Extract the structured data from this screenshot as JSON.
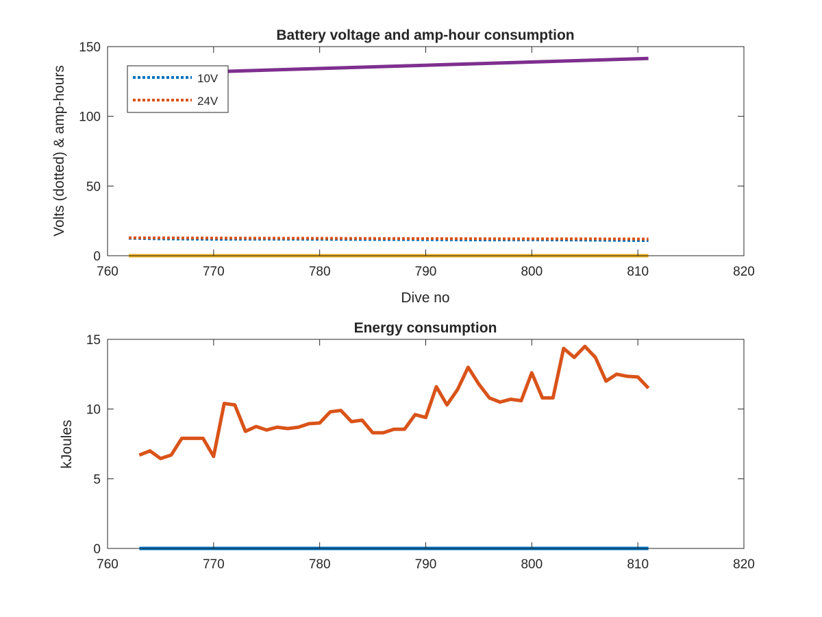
{
  "chart_data": [
    {
      "type": "line",
      "title": "Battery voltage and amp-hour consumption",
      "xlabel": "Dive no",
      "ylabel": "Volts (dotted) & amp-hours",
      "xlim": [
        760,
        820
      ],
      "ylim": [
        0,
        150
      ],
      "xticks": [
        760,
        770,
        780,
        790,
        800,
        810,
        820
      ],
      "yticks": [
        0,
        50,
        100,
        150
      ],
      "grid": false,
      "legend_position": "top-left",
      "series": [
        {
          "name": "10V",
          "color": "#0072BD",
          "style": "dotted",
          "in_legend": true,
          "x": [
            762,
            765,
            770,
            775,
            780,
            785,
            790,
            795,
            800,
            805,
            811
          ],
          "y": [
            12.5,
            12.1,
            11.8,
            11.9,
            11.8,
            11.6,
            11.5,
            11.3,
            11.4,
            11.2,
            10.8
          ]
        },
        {
          "name": "24V",
          "color": "#D95319",
          "style": "dotted",
          "in_legend": true,
          "x": [
            762,
            765,
            770,
            775,
            780,
            785,
            790,
            795,
            800,
            805,
            811
          ],
          "y": [
            12.9,
            12.8,
            12.7,
            12.6,
            12.5,
            12.4,
            12.3,
            12.2,
            12.1,
            12.1,
            12.0
          ]
        },
        {
          "color": "#EDB120",
          "style": "solid",
          "in_legend": false,
          "x": [
            762,
            811
          ],
          "y": [
            0,
            0
          ]
        },
        {
          "color": "#7E2F8E",
          "style": "solid",
          "in_legend": false,
          "x": [
            768,
            811
          ],
          "y": [
            131.5,
            141.5
          ]
        }
      ]
    },
    {
      "type": "line",
      "title": "Energy consumption",
      "xlabel": "",
      "ylabel": "kJoules",
      "xlim": [
        760,
        820
      ],
      "ylim": [
        0,
        15
      ],
      "xticks": [
        760,
        770,
        780,
        790,
        800,
        810,
        820
      ],
      "yticks": [
        0,
        5,
        10,
        15
      ],
      "grid": false,
      "series": [
        {
          "color": "#0072BD",
          "style": "solid",
          "x": [
            763,
            811
          ],
          "y": [
            0,
            0
          ]
        },
        {
          "color": "#D95319",
          "style": "solid",
          "x": [
            763,
            764,
            765,
            766,
            767,
            768,
            769,
            770,
            771,
            772,
            773,
            774,
            775,
            776,
            777,
            778,
            779,
            780,
            781,
            782,
            783,
            784,
            785,
            786,
            787,
            788,
            789,
            790,
            791,
            792,
            793,
            794,
            795,
            796,
            797,
            798,
            799,
            800,
            801,
            802,
            803,
            804,
            805,
            806,
            807,
            808,
            809,
            810,
            811
          ],
          "y": [
            6.7,
            7.0,
            6.45,
            6.7,
            7.9,
            7.9,
            7.9,
            6.6,
            10.4,
            10.3,
            8.4,
            8.75,
            8.5,
            8.7,
            8.6,
            8.7,
            8.95,
            9.0,
            9.8,
            9.9,
            9.1,
            9.2,
            8.3,
            8.3,
            8.55,
            8.55,
            9.6,
            9.4,
            11.6,
            10.3,
            11.4,
            13.0,
            11.8,
            10.8,
            10.5,
            10.7,
            10.6,
            12.6,
            10.8,
            10.8,
            14.35,
            13.7,
            14.5,
            13.7,
            12.0,
            12.5,
            12.35,
            12.3,
            11.5
          ]
        }
      ]
    }
  ]
}
